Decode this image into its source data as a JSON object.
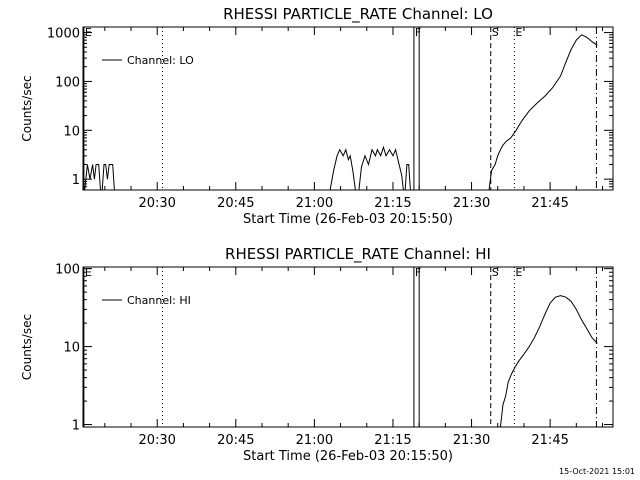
{
  "chart_data": [
    {
      "type": "line",
      "title": "RHESSI PARTICLE_RATE Channel: LO",
      "xlabel": "Start Time (26-Feb-03 20:15:50)",
      "ylabel": "Counts/sec",
      "x_unit": "HH:MM",
      "xlim": [
        "20:15:50",
        "21:57:00"
      ],
      "ylim": [
        0.6,
        1300
      ],
      "y_scale": "log",
      "x_ticks": [
        "20:30",
        "20:45",
        "21:00",
        "21:15",
        "21:30",
        "21:45"
      ],
      "y_ticks": [
        {
          "value": 1,
          "label": "1"
        },
        {
          "value": 10,
          "label": "10"
        },
        {
          "value": 100,
          "label": "100"
        },
        {
          "value": 1000,
          "label": "1000"
        }
      ],
      "legend": {
        "position": "top-left",
        "entries": [
          "Channel: LO"
        ]
      },
      "markers": [
        {
          "label": "E",
          "time": "20:16:00",
          "style": "solid"
        },
        {
          "label": "",
          "time": "20:31:00",
          "style": "dotted"
        },
        {
          "label": "F",
          "time": "21:19:00",
          "style": "solid-band-start"
        },
        {
          "label": "",
          "time": "21:20:00",
          "style": "solid-band-end"
        },
        {
          "label": "S",
          "time": "21:33:40",
          "style": "dashed"
        },
        {
          "label": "E",
          "time": "21:38:10",
          "style": "dotted"
        },
        {
          "label": "",
          "time": "21:53:50",
          "style": "dash-dot"
        }
      ],
      "series": [
        {
          "name": "Channel: LO",
          "segments": [
            [
              [
                "20:16:10",
                0.6
              ],
              [
                "20:16:40",
                2
              ],
              [
                "20:17:10",
                1
              ],
              [
                "20:17:40",
                2
              ],
              [
                "20:18:00",
                1
              ],
              [
                "20:18:20",
                2
              ],
              [
                "20:18:50",
                2
              ],
              [
                "20:19:10",
                0.6
              ]
            ],
            [
              [
                "20:19:30",
                0.6
              ],
              [
                "20:19:50",
                2
              ],
              [
                "20:20:10",
                2
              ],
              [
                "20:20:30",
                1
              ],
              [
                "20:20:50",
                2
              ],
              [
                "20:21:30",
                2
              ],
              [
                "20:21:50",
                0.6
              ]
            ],
            [
              [
                "21:03:00",
                0.6
              ],
              [
                "21:03:40",
                1.5
              ],
              [
                "21:04:20",
                3
              ],
              [
                "21:04:50",
                4
              ],
              [
                "21:05:30",
                3
              ],
              [
                "21:06:00",
                4
              ],
              [
                "21:06:30",
                2.5
              ],
              [
                "21:06:50",
                3
              ],
              [
                "21:07:20",
                1.5
              ],
              [
                "21:07:50",
                0.6
              ]
            ],
            [
              [
                "21:08:30",
                0.6
              ],
              [
                "21:09:00",
                1.8
              ],
              [
                "21:09:40",
                3
              ],
              [
                "21:10:20",
                2
              ],
              [
                "21:11:00",
                4
              ],
              [
                "21:11:40",
                3
              ],
              [
                "21:12:00",
                4
              ],
              [
                "21:12:40",
                3
              ],
              [
                "21:13:10",
                4.5
              ],
              [
                "21:13:40",
                3
              ],
              [
                "21:14:20",
                4
              ],
              [
                "21:15:00",
                3
              ],
              [
                "21:15:30",
                4
              ],
              [
                "21:16:10",
                2
              ],
              [
                "21:16:40",
                1.2
              ],
              [
                "21:17:00",
                0.6
              ]
            ],
            [
              [
                "21:17:20",
                0.6
              ],
              [
                "21:17:40",
                2
              ],
              [
                "21:18:00",
                2
              ],
              [
                "21:18:20",
                0.6
              ]
            ],
            [
              [
                "21:33:20",
                0.6
              ],
              [
                "21:33:50",
                1.5
              ],
              [
                "21:34:30",
                2
              ],
              [
                "21:35:00",
                3
              ],
              [
                "21:35:30",
                4
              ],
              [
                "21:36:00",
                5
              ],
              [
                "21:36:40",
                6
              ],
              [
                "21:37:30",
                7
              ],
              [
                "21:38:30",
                10
              ],
              [
                "21:39:40",
                16
              ],
              [
                "21:41:00",
                25
              ],
              [
                "21:42:30",
                36
              ],
              [
                "21:44:00",
                50
              ],
              [
                "21:45:30",
                75
              ],
              [
                "21:47:00",
                130
              ],
              [
                "21:48:00",
                250
              ],
              [
                "21:49:00",
                450
              ],
              [
                "21:50:00",
                700
              ],
              [
                "21:51:00",
                900
              ],
              [
                "21:52:00",
                800
              ],
              [
                "21:53:00",
                650
              ],
              [
                "21:54:00",
                550
              ]
            ]
          ]
        }
      ]
    },
    {
      "type": "line",
      "title": "RHESSI PARTICLE_RATE Channel: HI",
      "xlabel": "Start Time (26-Feb-03 20:15:50)",
      "ylabel": "Counts/sec",
      "x_unit": "HH:MM",
      "xlim": [
        "20:15:50",
        "21:57:00"
      ],
      "ylim": [
        0.93,
        105
      ],
      "y_scale": "log",
      "x_ticks": [
        "20:30",
        "20:45",
        "21:00",
        "21:15",
        "21:30",
        "21:45"
      ],
      "y_ticks": [
        {
          "value": 1,
          "label": "1"
        },
        {
          "value": 10,
          "label": "10"
        },
        {
          "value": 100,
          "label": "100"
        }
      ],
      "legend": {
        "position": "top-left",
        "entries": [
          "Channel: HI"
        ]
      },
      "markers": [
        {
          "label": "E",
          "time": "20:16:00",
          "style": "solid"
        },
        {
          "label": "",
          "time": "20:31:00",
          "style": "dotted"
        },
        {
          "label": "F",
          "time": "21:19:00",
          "style": "solid-band-start"
        },
        {
          "label": "",
          "time": "21:20:00",
          "style": "solid-band-end"
        },
        {
          "label": "S",
          "time": "21:33:40",
          "style": "dashed"
        },
        {
          "label": "E",
          "time": "21:38:10",
          "style": "dotted"
        },
        {
          "label": "",
          "time": "21:53:50",
          "style": "dash-dot"
        }
      ],
      "series": [
        {
          "name": "Channel: HI",
          "segments": [
            [
              [
                "21:35:30",
                0.93
              ],
              [
                "21:36:00",
                1.8
              ],
              [
                "21:36:30",
                2.3
              ],
              [
                "21:37:00",
                3.5
              ],
              [
                "21:37:40",
                4.5
              ],
              [
                "21:38:20",
                5.5
              ],
              [
                "21:39:00",
                6.5
              ],
              [
                "21:40:00",
                8
              ],
              [
                "21:41:00",
                10
              ],
              [
                "21:42:00",
                13
              ],
              [
                "21:43:00",
                18
              ],
              [
                "21:44:00",
                26
              ],
              [
                "21:45:00",
                36
              ],
              [
                "21:46:00",
                43
              ],
              [
                "21:47:00",
                45
              ],
              [
                "21:48:00",
                43
              ],
              [
                "21:49:00",
                38
              ],
              [
                "21:50:00",
                30
              ],
              [
                "21:51:00",
                22
              ],
              [
                "21:52:00",
                17
              ],
              [
                "21:53:00",
                13
              ],
              [
                "21:54:00",
                11
              ]
            ]
          ]
        }
      ]
    }
  ],
  "timestamp": "15-Oct-2021 15:01"
}
